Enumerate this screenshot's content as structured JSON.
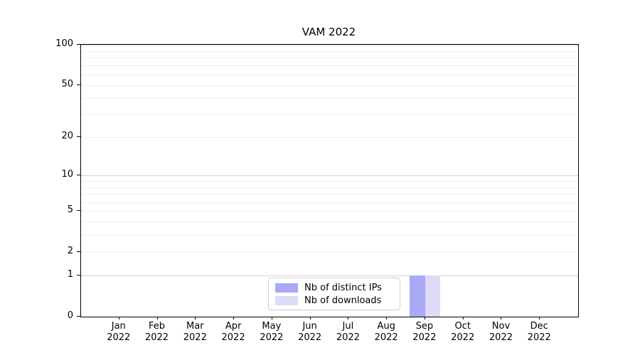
{
  "chart_data": {
    "type": "bar",
    "title": "VAM 2022",
    "categories": [
      "Jan",
      "Feb",
      "Mar",
      "Apr",
      "May",
      "Jun",
      "Jul",
      "Aug",
      "Sep",
      "Oct",
      "Nov",
      "Dec"
    ],
    "category_year": "2022",
    "series": [
      {
        "name": "Nb of distinct IPs",
        "color": "#a9a9f7",
        "values": [
          0,
          0,
          0,
          0,
          0,
          0,
          0,
          0,
          1,
          0,
          0,
          0
        ]
      },
      {
        "name": "Nb of downloads",
        "color": "#dcdcf8",
        "values": [
          0,
          0,
          0,
          0,
          0,
          0,
          0,
          0,
          1,
          0,
          0,
          0
        ]
      }
    ],
    "y_axis": {
      "scale": "log1p",
      "ticks": [
        0,
        1,
        2,
        5,
        10,
        20,
        50,
        100
      ],
      "major_gridlines": [
        1,
        10,
        100
      ],
      "minor_gridlines": [
        2,
        3,
        4,
        5,
        6,
        7,
        8,
        9,
        20,
        30,
        40,
        50,
        60,
        70,
        80,
        90
      ],
      "min": 0,
      "max": 100
    },
    "legend_position": "lower center",
    "grid": "on"
  }
}
